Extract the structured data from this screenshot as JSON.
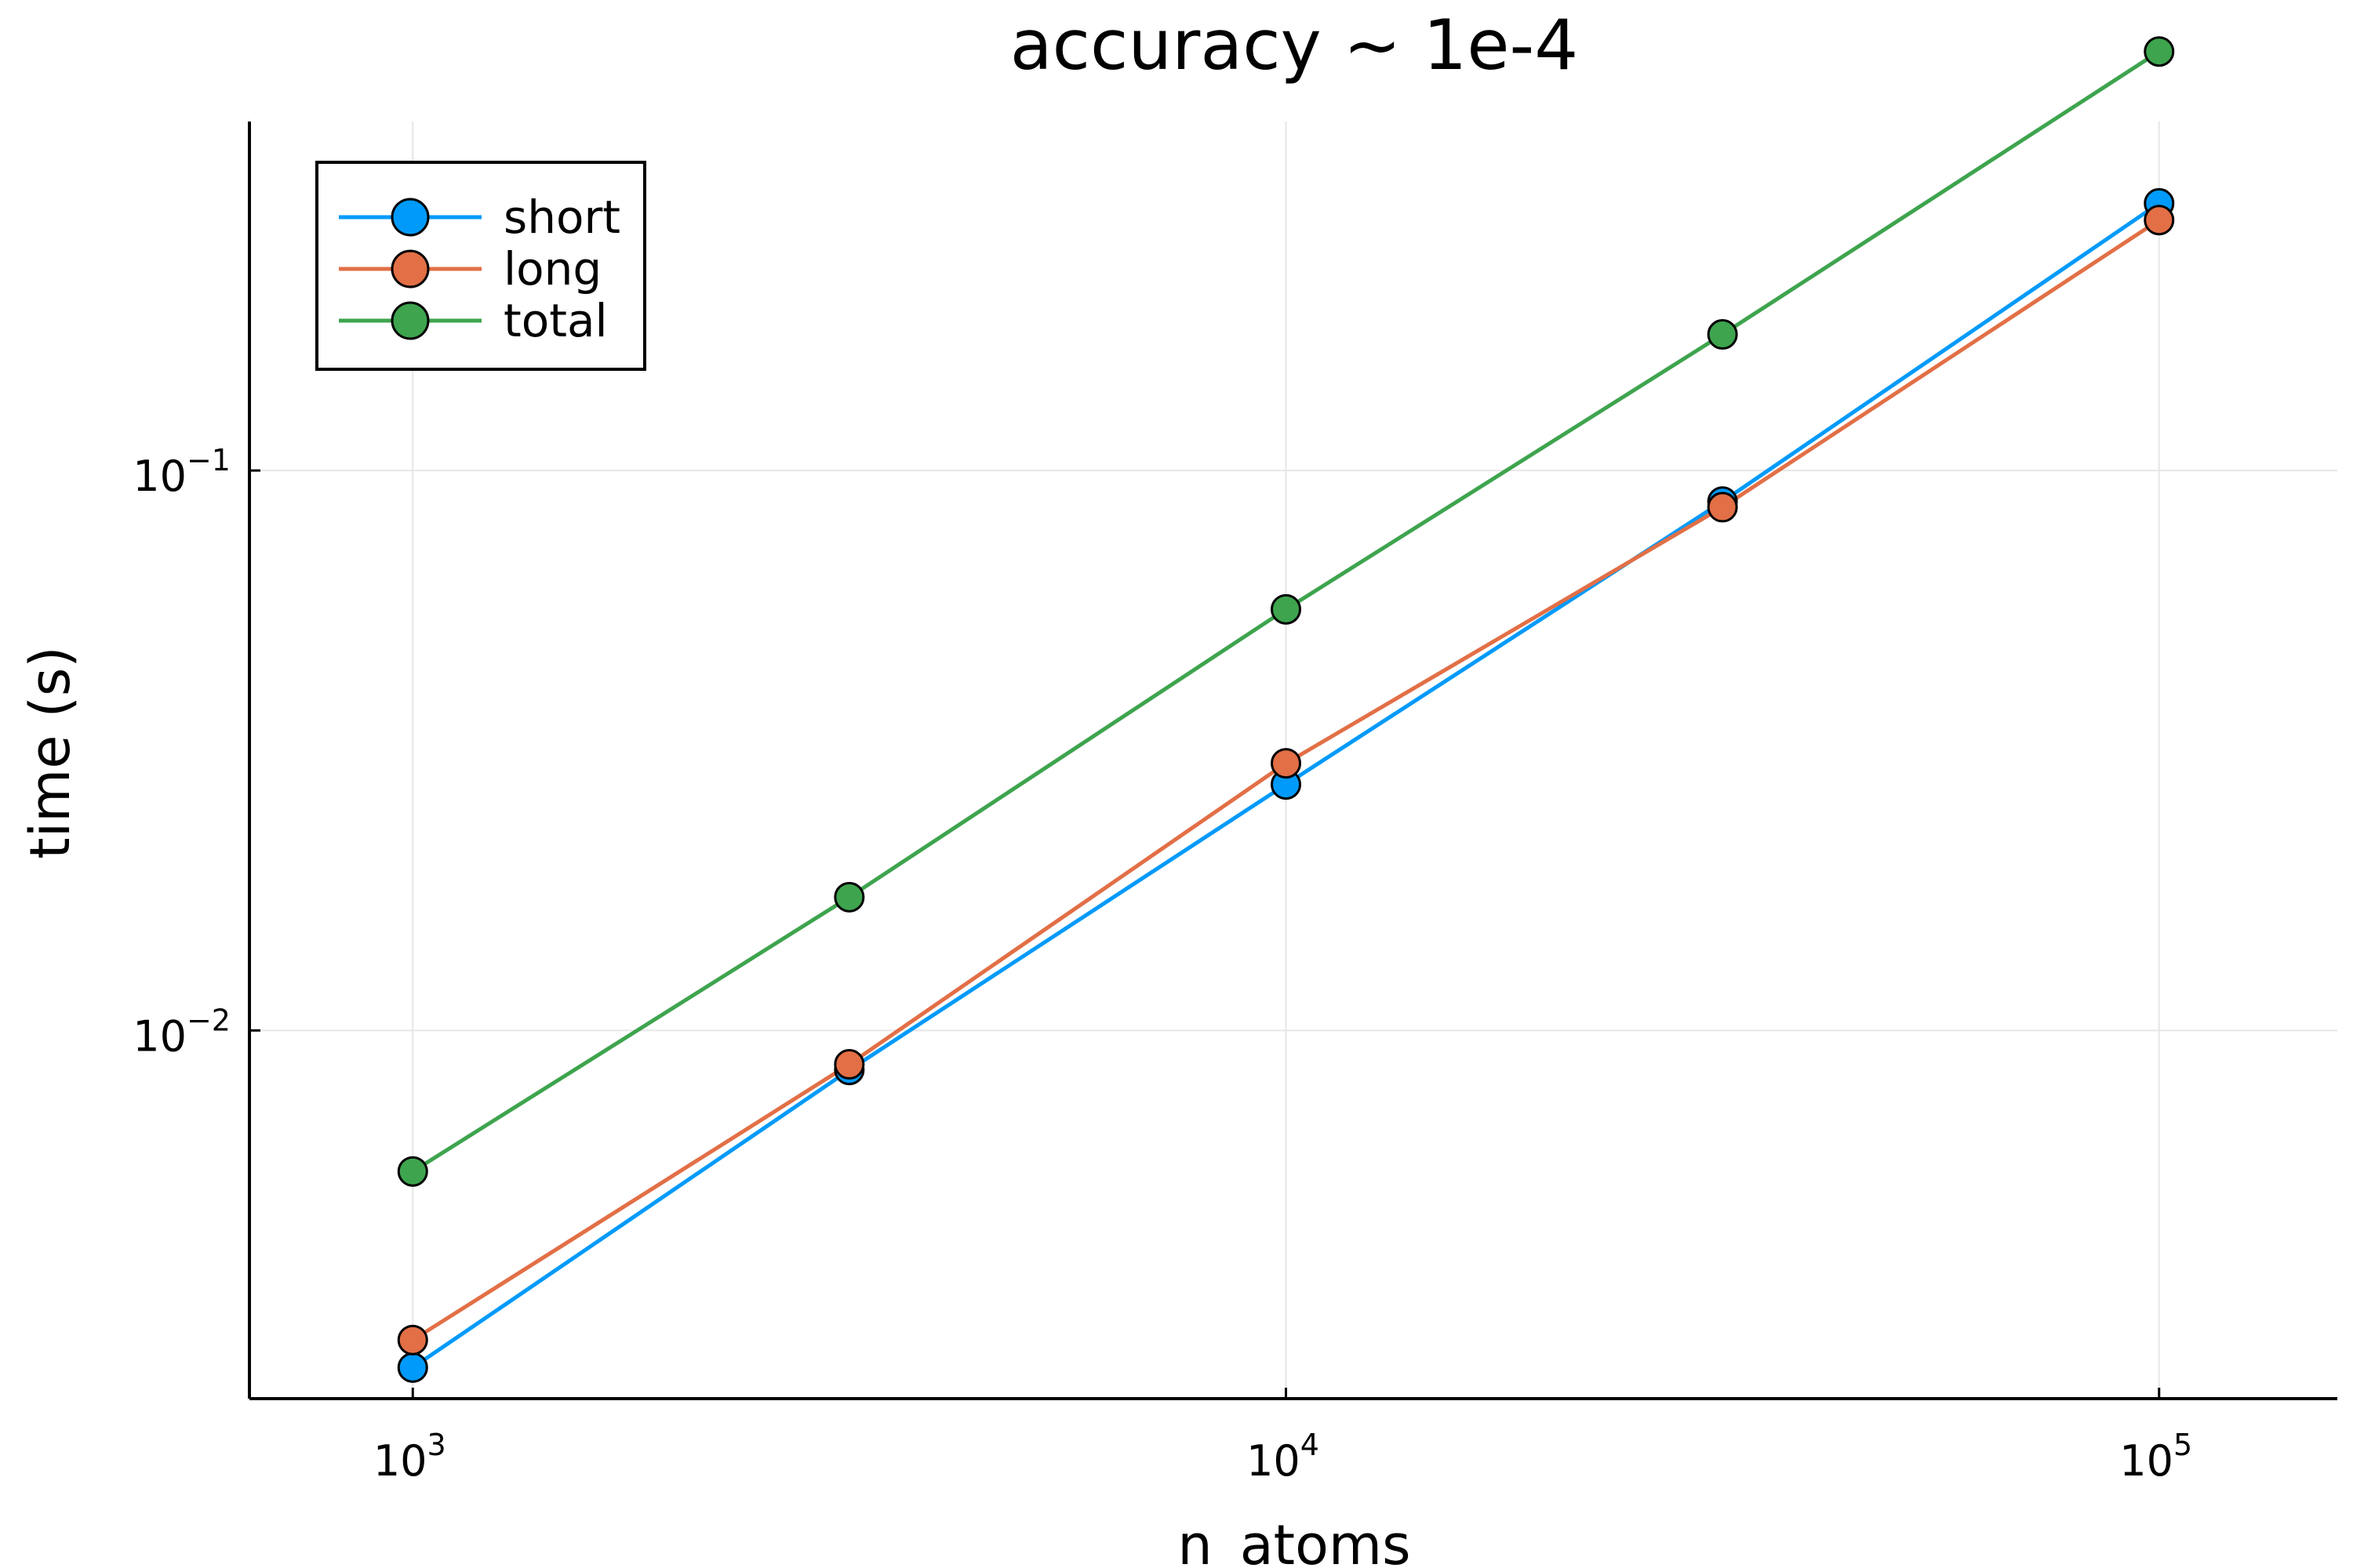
{
  "chart_data": {
    "type": "line",
    "title": "accuracy ~ 1e-4",
    "xlabel": "n_atoms",
    "ylabel": "time (s)",
    "x_scale": "log",
    "y_scale": "log",
    "xlim": [
      650,
      160000
    ],
    "ylim": [
      0.0022,
      0.42
    ],
    "grid": true,
    "legend_position": "top-left",
    "x_ticks": [
      {
        "value": 1000,
        "base": "10",
        "exp": "3"
      },
      {
        "value": 10000,
        "base": "10",
        "exp": "4"
      },
      {
        "value": 100000,
        "base": "10",
        "exp": "5"
      }
    ],
    "y_ticks": [
      {
        "value": 0.01,
        "base": "10",
        "exp": "−2"
      },
      {
        "value": 0.1,
        "base": "10",
        "exp": "−1"
      }
    ],
    "x": [
      1000,
      3162,
      10000,
      31623,
      100000
    ],
    "series": [
      {
        "name": "short",
        "color": "#009AFA",
        "values": [
          0.0025,
          0.0085,
          0.0275,
          0.088,
          0.3
        ]
      },
      {
        "name": "long",
        "color": "#E26F46",
        "values": [
          0.0028,
          0.0087,
          0.03,
          0.086,
          0.28
        ]
      },
      {
        "name": "total",
        "color": "#3EA44E",
        "values": [
          0.0056,
          0.0173,
          0.0565,
          0.175,
          0.56
        ]
      }
    ]
  }
}
